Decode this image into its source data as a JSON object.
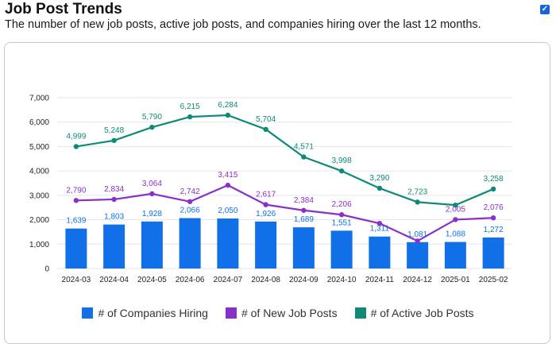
{
  "header": {
    "title": "Job Post Trends",
    "subtitle": "The number of new job posts, active job posts, and companies hiring over the last 12 months.",
    "checkbox_icon": "check-icon",
    "checkbox_mark": "✓"
  },
  "colors": {
    "companies": "#1170e8",
    "new_posts": "#8b2fc9",
    "active_posts": "#0e8a78",
    "grid": "#e6e6e6"
  },
  "chart_data": {
    "type": "bar",
    "title": "",
    "xlabel": "",
    "ylabel": "",
    "ylim": [
      0,
      7000
    ],
    "yticks": [
      0,
      1000,
      2000,
      3000,
      4000,
      5000,
      6000,
      7000
    ],
    "ytick_labels": [
      "0",
      "1,000",
      "2,000",
      "3,000",
      "4,000",
      "5,000",
      "6,000",
      "7,000"
    ],
    "categories": [
      "2024-03",
      "2024-04",
      "2024-05",
      "2024-06",
      "2024-07",
      "2024-08",
      "2024-09",
      "2024-10",
      "2024-11",
      "2024-12",
      "2025-01",
      "2025-02"
    ],
    "series": [
      {
        "name": "# of Companies Hiring",
        "type": "bar",
        "values": [
          1639,
          1803,
          1928,
          2066,
          2050,
          1926,
          1689,
          1551,
          1311,
          1081,
          1088,
          1272
        ],
        "labels": [
          "1,639",
          "1,803",
          "1,928",
          "2,066",
          "2,050",
          "1,926",
          "1,689",
          "1,551",
          "1,311",
          "1,081",
          "1,088",
          "1,272"
        ]
      },
      {
        "name": "# of New Job Posts",
        "type": "line",
        "values": [
          2790,
          2834,
          3064,
          2742,
          3415,
          2617,
          2384,
          2206,
          1850,
          1130,
          2005,
          2076
        ],
        "labels": [
          "2,790",
          "2,834",
          "3,064",
          "2,742",
          "3,415",
          "2,617",
          "2,384",
          "2,206",
          "",
          "",
          "2,005",
          "2,076"
        ]
      },
      {
        "name": "# of Active Job Posts",
        "type": "line",
        "values": [
          4999,
          5248,
          5790,
          6215,
          6284,
          5704,
          4571,
          3998,
          3290,
          2723,
          2600,
          3258
        ],
        "labels": [
          "4,999",
          "5,248",
          "5,790",
          "6,215",
          "6,284",
          "5,704",
          "4,571",
          "3,998",
          "3,290",
          "2,723",
          "",
          "3,258"
        ]
      }
    ],
    "legend": [
      "# of Companies Hiring",
      "# of New Job Posts",
      "# of Active Job Posts"
    ],
    "legend_position": "bottom",
    "grid": true
  }
}
